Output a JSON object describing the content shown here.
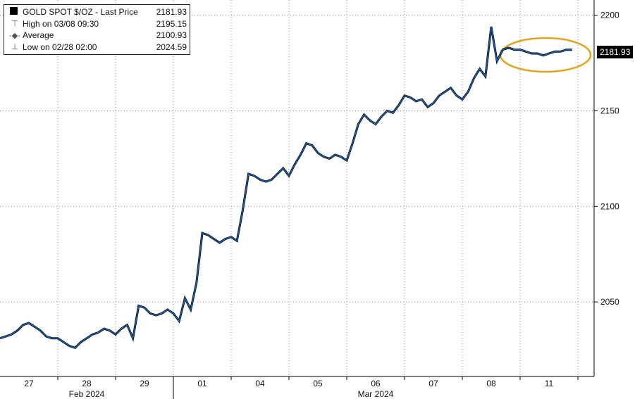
{
  "legend": {
    "series_label": "GOLD SPOT $/OZ - Last Price",
    "last_price": "2181.93",
    "high_label": "High on 03/08 09:30",
    "high_value": "2195.15",
    "avg_label": "Average",
    "avg_value": "2100.93",
    "low_label": "Low on 02/28 02:00",
    "low_value": "2024.59"
  },
  "price_tag": "2181.93",
  "chart_data": {
    "type": "line",
    "title": "",
    "xlabel": "",
    "ylabel": "",
    "ylim": [
      2011,
      2208
    ],
    "grid": true,
    "yticks": [
      2050,
      2100,
      2150,
      2200
    ],
    "ytick_labels": [
      "2050",
      "2100",
      "2150",
      "2200"
    ],
    "day_ticks": [
      "27",
      "28",
      "29",
      "01",
      "04",
      "05",
      "06",
      "07",
      "08",
      "11"
    ],
    "month_labels": [
      "Feb 2024",
      "Mar 2024"
    ],
    "highlight": "ellipse around latest prices",
    "series": [
      {
        "color": "#1f5fa8",
        "x": [
          0.0,
          0.1,
          0.2,
          0.3,
          0.4,
          0.5,
          0.6,
          0.7,
          0.8,
          0.9,
          1.0,
          1.1,
          1.2,
          1.3,
          1.4,
          1.5,
          1.6,
          1.7,
          1.8,
          1.9,
          2.0,
          2.1,
          2.2,
          2.3,
          2.4,
          2.5,
          2.6,
          2.7,
          2.8,
          2.9,
          3.0,
          3.1,
          3.2,
          3.3,
          3.4,
          3.5,
          3.6,
          3.7,
          3.8,
          3.9,
          4.0,
          4.1,
          4.2,
          4.3,
          4.4,
          4.5,
          4.6,
          4.7,
          4.8,
          4.9,
          5.0,
          5.1,
          5.2,
          5.3,
          5.4,
          5.5,
          5.6,
          5.7,
          5.8,
          5.9,
          6.0,
          6.1,
          6.2,
          6.3,
          6.4,
          6.5,
          6.6,
          6.7,
          6.8,
          6.9,
          7.0,
          7.1,
          7.2,
          7.3,
          7.4,
          7.5,
          7.6,
          7.7,
          7.8,
          7.9,
          8.0,
          8.1,
          8.2,
          8.3,
          8.4,
          8.5,
          8.6,
          8.7,
          8.8,
          8.9,
          9.0,
          9.1,
          9.2,
          9.3,
          9.4,
          9.5,
          9.6,
          9.7,
          9.8,
          9.9
        ],
        "values": [
          2031,
          2032,
          2033,
          2035,
          2038,
          2039,
          2037,
          2035,
          2032,
          2031,
          2031,
          2029,
          2027,
          2026,
          2029,
          2031,
          2033,
          2034,
          2036,
          2035,
          2033,
          2036,
          2038,
          2031,
          2048,
          2047,
          2044,
          2043,
          2044,
          2046,
          2044,
          2040,
          2052,
          2046,
          2060,
          2086,
          2085,
          2083,
          2081,
          2083,
          2084,
          2082,
          2098,
          2117,
          2116,
          2114,
          2113,
          2114,
          2117,
          2120,
          2116,
          2122,
          2127,
          2133,
          2132,
          2128,
          2126,
          2125,
          2127,
          2126,
          2124,
          2133,
          2143,
          2148,
          2145,
          2143,
          2147,
          2150,
          2149,
          2153,
          2158,
          2157,
          2155,
          2156,
          2152,
          2154,
          2158,
          2160,
          2162,
          2158,
          2156,
          2160,
          2167,
          2172,
          2168,
          2194,
          2176,
          2182,
          2183,
          2182,
          2182,
          2181,
          2180,
          2180,
          2179,
          2180,
          2181,
          2181,
          2182,
          2181.93
        ]
      }
    ]
  }
}
